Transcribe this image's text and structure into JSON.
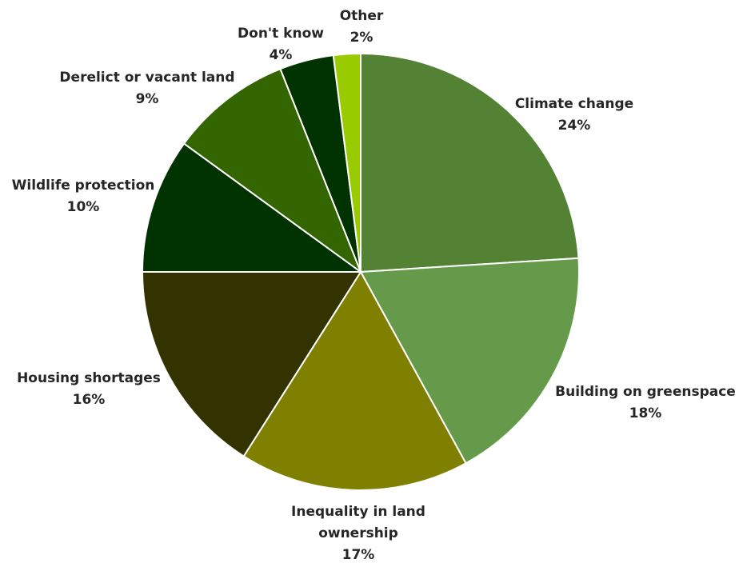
{
  "chart_data": {
    "type": "pie",
    "title": "",
    "categories": [
      "Climate change",
      "Building on greenspace",
      "Inequality in land ownership",
      "Housing shortages",
      "Wildlife protection",
      "Derelict or vacant land",
      "Don't know",
      "Other"
    ],
    "values": [
      24,
      18,
      17,
      16,
      10,
      9,
      4,
      2
    ],
    "value_labels": [
      "24%",
      "18%",
      "17%",
      "16%",
      "10%",
      "9%",
      "4%",
      "2%"
    ],
    "label_lines": [
      [
        "Climate change"
      ],
      [
        "Building on greenspace"
      ],
      [
        "Inequality in land",
        "ownership"
      ],
      [
        "Housing shortages"
      ],
      [
        "Wildlife protection"
      ],
      [
        "Derelict or vacant land"
      ],
      [
        "Don't know"
      ],
      [
        "Other"
      ]
    ],
    "colors": [
      "#548235",
      "#669A4B",
      "#808000",
      "#333300",
      "#003300",
      "#336600",
      "#003300",
      "#99CC00"
    ],
    "start_angle": "12 o'clock",
    "direction": "clockwise",
    "legend": "none",
    "data_labels": "outside"
  }
}
